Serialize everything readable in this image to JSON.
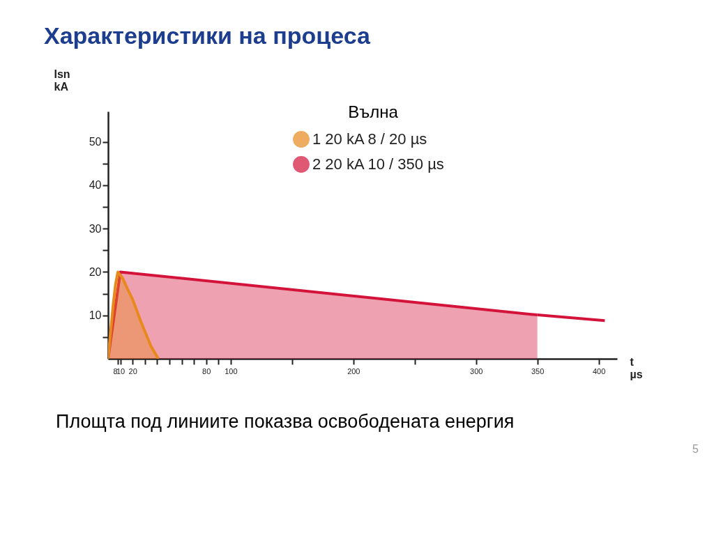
{
  "chart_data": {
    "type": "area",
    "title": "Характеристики на процеса",
    "xlabel": "t\nµs",
    "ylabel": "Isn\nkA",
    "legend_title": "Вълна",
    "annotations": [
      "Площта под линиите показва освободената енергия",
      "5"
    ],
    "series": [
      {
        "name": "1  20 kA    8 / 20 µs",
        "color": "#e8891e",
        "x": [
          0,
          2,
          4,
          6,
          8,
          12,
          16,
          20,
          27,
          35,
          41
        ],
        "values": [
          0,
          6,
          12,
          17,
          20,
          18.5,
          16,
          13.7,
          8.4,
          2.9,
          0
        ]
      },
      {
        "name": "2  20 kA  10 / 350 µs",
        "color": "#d4133a",
        "x": [
          0,
          10,
          350
        ],
        "values": [
          0,
          20,
          10.1
        ]
      },
      {
        "type": "line",
        "color": "#d4133a",
        "x": [
          350,
          405
        ],
        "values": [
          10.1,
          8.8
        ]
      }
    ],
    "xlim": [
      0,
      415
    ],
    "ylim": [
      0,
      57
    ],
    "xticks": [
      8,
      10,
      20,
      {
        "value": 30,
        "label": null
      },
      {
        "value": 40,
        "label": null
      },
      {
        "value": 50,
        "label": null
      },
      {
        "value": 60,
        "label": null
      },
      {
        "value": 70,
        "label": null
      },
      80,
      {
        "value": 90,
        "label": null
      },
      100,
      {
        "value": 150,
        "label": null
      },
      200,
      {
        "value": 250,
        "label": null
      },
      300,
      350,
      400
    ],
    "yticks": [
      {
        "value": 5,
        "label": null
      },
      10,
      {
        "value": 15,
        "label": null
      },
      20,
      {
        "value": 25,
        "label": null
      },
      30,
      {
        "value": 35,
        "label": null
      },
      40,
      {
        "value": 45,
        "label": null
      },
      50
    ],
    "legend": "top"
  }
}
